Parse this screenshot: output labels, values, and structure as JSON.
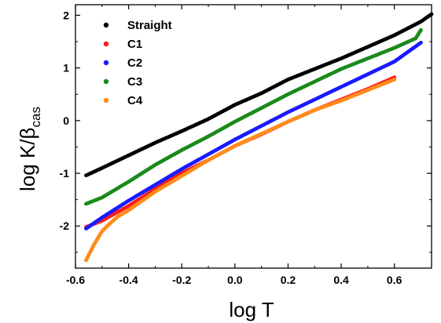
{
  "chart_data": {
    "type": "scatter",
    "title": "",
    "xlabel": "log T",
    "ylabel": {
      "main": "log K/β",
      "subscript": "cas"
    },
    "xlim": [
      -0.6,
      0.74
    ],
    "ylim": [
      -2.8,
      2.2
    ],
    "x_ticks": [
      "-0.6",
      "-0.4",
      "-0.2",
      "0.0",
      "0.2",
      "0.4",
      "0.6"
    ],
    "y_ticks": [
      "-2",
      "-1",
      "0",
      "1",
      "2"
    ],
    "x_tick_values": [
      -0.6,
      -0.4,
      -0.2,
      0.0,
      0.2,
      0.4,
      0.6
    ],
    "y_tick_values": [
      -2,
      -1,
      0,
      1,
      2
    ],
    "grid": false,
    "legend_position": "top-left",
    "series": [
      {
        "name": "Straight",
        "color": "#000000",
        "points": [
          [
            -0.56,
            -1.04
          ],
          [
            -0.5,
            -0.9
          ],
          [
            -0.4,
            -0.66
          ],
          [
            -0.3,
            -0.42
          ],
          [
            -0.2,
            -0.2
          ],
          [
            -0.1,
            0.03
          ],
          [
            0.0,
            0.3
          ],
          [
            0.1,
            0.52
          ],
          [
            0.2,
            0.78
          ],
          [
            0.3,
            0.98
          ],
          [
            0.4,
            1.18
          ],
          [
            0.5,
            1.4
          ],
          [
            0.6,
            1.62
          ],
          [
            0.7,
            1.88
          ],
          [
            0.74,
            2.02
          ]
        ]
      },
      {
        "name": "C1",
        "color": "#ff1a1a",
        "points": [
          [
            -0.56,
            -2.02
          ],
          [
            -0.5,
            -1.9
          ],
          [
            -0.4,
            -1.62
          ],
          [
            -0.3,
            -1.3
          ],
          [
            -0.2,
            -1.0
          ],
          [
            -0.1,
            -0.75
          ],
          [
            0.0,
            -0.48
          ],
          [
            0.1,
            -0.26
          ],
          [
            0.2,
            -0.02
          ],
          [
            0.3,
            0.2
          ],
          [
            0.4,
            0.4
          ],
          [
            0.5,
            0.6
          ],
          [
            0.6,
            0.82
          ]
        ]
      },
      {
        "name": "C2",
        "color": "#1a1aff",
        "points": [
          [
            -0.56,
            -2.05
          ],
          [
            -0.5,
            -1.84
          ],
          [
            -0.4,
            -1.52
          ],
          [
            -0.3,
            -1.22
          ],
          [
            -0.2,
            -0.92
          ],
          [
            -0.1,
            -0.64
          ],
          [
            0.0,
            -0.36
          ],
          [
            0.1,
            -0.1
          ],
          [
            0.2,
            0.16
          ],
          [
            0.3,
            0.4
          ],
          [
            0.4,
            0.64
          ],
          [
            0.5,
            0.88
          ],
          [
            0.6,
            1.12
          ],
          [
            0.7,
            1.48
          ]
        ]
      },
      {
        "name": "C3",
        "color": "#1b8a1b",
        "points": [
          [
            -0.56,
            -1.58
          ],
          [
            -0.5,
            -1.46
          ],
          [
            -0.4,
            -1.16
          ],
          [
            -0.3,
            -0.84
          ],
          [
            -0.2,
            -0.56
          ],
          [
            -0.1,
            -0.3
          ],
          [
            0.0,
            -0.02
          ],
          [
            0.1,
            0.24
          ],
          [
            0.2,
            0.5
          ],
          [
            0.3,
            0.74
          ],
          [
            0.4,
            0.98
          ],
          [
            0.5,
            1.18
          ],
          [
            0.6,
            1.38
          ],
          [
            0.68,
            1.56
          ],
          [
            0.7,
            1.72
          ]
        ]
      },
      {
        "name": "C4",
        "color": "#ff8c1a",
        "points": [
          [
            -0.56,
            -2.65
          ],
          [
            -0.53,
            -2.35
          ],
          [
            -0.5,
            -2.1
          ],
          [
            -0.47,
            -1.95
          ],
          [
            -0.44,
            -1.82
          ],
          [
            -0.4,
            -1.7
          ],
          [
            -0.3,
            -1.35
          ],
          [
            -0.2,
            -1.05
          ],
          [
            -0.1,
            -0.75
          ],
          [
            0.0,
            -0.48
          ],
          [
            0.1,
            -0.25
          ],
          [
            0.2,
            -0.02
          ],
          [
            0.3,
            0.2
          ],
          [
            0.4,
            0.38
          ],
          [
            0.5,
            0.58
          ],
          [
            0.6,
            0.78
          ]
        ]
      }
    ]
  }
}
